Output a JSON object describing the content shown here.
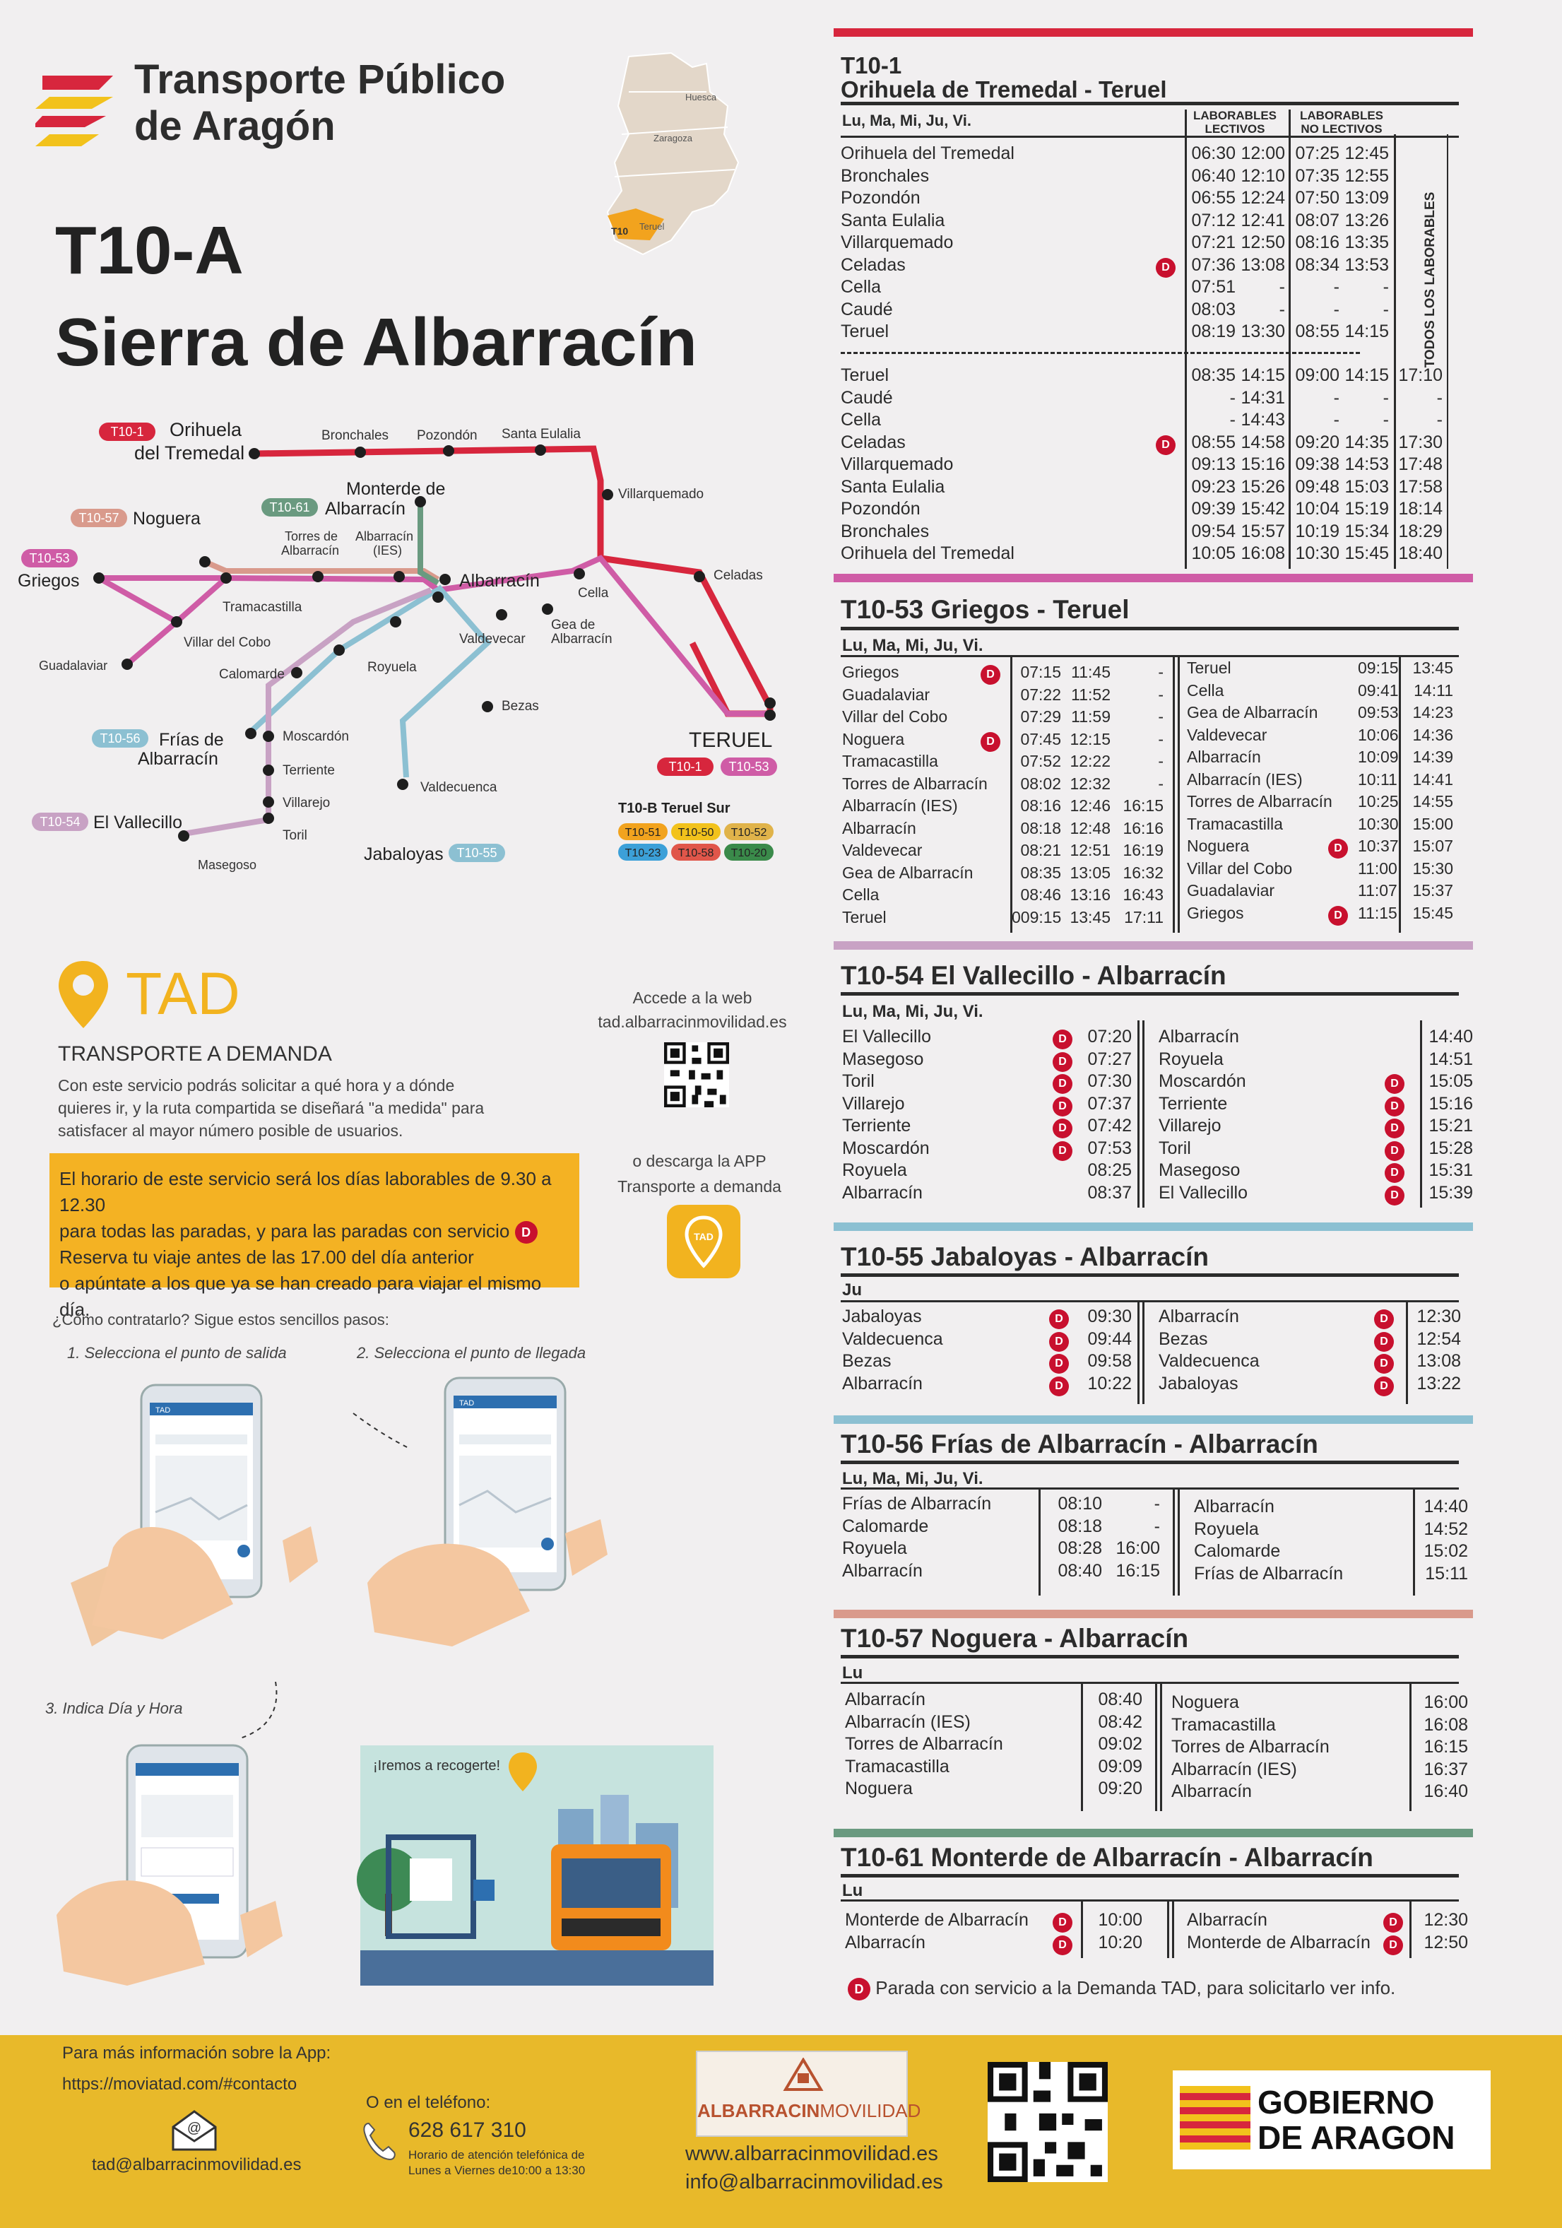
{
  "header": {
    "brand_line1": "Transporte Público",
    "brand_line2": "de Aragón",
    "map_labels": [
      "Huesca",
      "Zaragoza",
      "T10",
      "Teruel"
    ],
    "line_code": "T10-A",
    "line_name": "Sierra de Albarracín"
  },
  "route_map": {
    "stops": {
      "orihuela": "Orihuela",
      "del_tremedal": "del Tremedal",
      "bronchales": "Bronchales",
      "pozondon": "Pozondón",
      "santa_eulalia": "Santa Eulalia",
      "villarquemado": "Villarquemado",
      "monterde": "Monterde de",
      "albarracin_sub": "Albarracín",
      "noguera": "Noguera",
      "griegos": "Griegos",
      "torres": "Torres de",
      "torres_sub": "Albarracín",
      "albarracin_ies": "Albarracín",
      "ies": "(IES)",
      "albarracin": "Albarracín",
      "cella": "Cella",
      "celadas": "Celadas",
      "tramacastilla": "Tramacastilla",
      "guadalaviar": "Guadalaviar",
      "villar_cobo": "Villar del Cobo",
      "calomarde": "Calomarde",
      "royuela": "Royuela",
      "valdevecar": "Valdevecar",
      "gea": "Gea de",
      "gea_sub": "Albarracín",
      "bezas": "Bezas",
      "frias": "Frías de",
      "frias_sub": "Albarracín",
      "moscardon": "Moscardón",
      "terriente": "Terriente",
      "villarejo": "Villarejo",
      "toril": "Toril",
      "vallecillo": "El Vallecillo",
      "masegoso": "Masegoso",
      "valdecuenca": "Valdecuenca",
      "jabaloyas": "Jabaloyas",
      "teruel": "TERUEL"
    },
    "badges": {
      "t10_1": "T10-1",
      "t10_57": "T10-57",
      "t10_61": "T10-61",
      "t10_53": "T10-53",
      "t10_56": "T10-56",
      "t10_54": "T10-54",
      "t10_55": "T10-55",
      "t10_1b": "T10-1",
      "t10_53b": "T10-53"
    },
    "sur_title": "T10-B Teruel Sur",
    "sur_badges": [
      "T10-51",
      "T10-50",
      "T10-52",
      "T10-23",
      "T10-58",
      "T10-20"
    ]
  },
  "tad": {
    "logo": "TAD",
    "subtitle": "TRANSPORTE A DEMANDA",
    "desc": "Con este servicio podrás solicitar a qué hora y a dónde quieres ir, y la ruta compartida se diseñará \"a medida\" para satisfacer al mayor número posible de usuarios.",
    "web_line1": "Accede a la web",
    "web_line2": "tad.albarracinmovilidad.es",
    "app_line1": "o descarga la APP",
    "app_line2": "Transporte a demanda",
    "app_icon_text": "TAD",
    "box_l1": "El horario de este servicio será los días laborables de 9.30 a 12.30",
    "box_l2": "para todas las paradas, y para las paradas con servicio",
    "box_l3": "Reserva tu viaje antes de las 17.00 del día anterior",
    "box_l4": "o apúntate a los que ya se han creado para viajar el mismo día.",
    "badge": "D",
    "how": "¿Cómo contratarlo? Sigue estos sencillos pasos:",
    "step1": "1. Selecciona el punto de salida",
    "step2": "2. Selecciona el punto de llegada",
    "step3": "3. Indica Día y Hora",
    "pickup": "¡Iremos a recogerte!",
    "phone_header": "TAD"
  },
  "timetables": {
    "t10_1": {
      "title1": "T10-1",
      "title2": "Orihuela de Tremedal - Teruel",
      "days": "Lu, Ma, Mi, Ju, Vi.",
      "head_lect": "LABORABLES LECTIVOS",
      "head_nolect": "LABORABLES NO LECTIVOS",
      "todos": "TODOS LOS LABORABLES",
      "out_stops": [
        "Orihuela del Tremedal",
        "Bronchales",
        "Pozondón",
        "Santa Eulalia",
        "Villarquemado",
        "Celadas",
        "Cella",
        "Caudé",
        "Teruel"
      ],
      "out_d": [
        "",
        "",
        "",
        "",
        "",
        "D",
        "",
        "",
        ""
      ],
      "out_c1": [
        "06:30",
        "06:40",
        "06:55",
        "07:12",
        "07:21",
        "07:36",
        "07:51",
        "08:03",
        "08:19"
      ],
      "out_c2": [
        "12:00",
        "12:10",
        "12:24",
        "12:41",
        "12:50",
        "13:08",
        "-",
        "-",
        "13:30"
      ],
      "out_c3": [
        "07:25",
        "07:35",
        "07:50",
        "08:07",
        "08:16",
        "08:34",
        "-",
        "-",
        "08:55"
      ],
      "out_c4": [
        "12:45",
        "12:55",
        "13:09",
        "13:26",
        "13:35",
        "13:53",
        "-",
        "-",
        "14:15"
      ],
      "ret_stops": [
        "Teruel",
        "Caudé",
        "Cella",
        "Celadas",
        "Villarquemado",
        "Santa Eulalia",
        "Pozondón",
        "Bronchales",
        "Orihuela del Tremedal"
      ],
      "ret_d": [
        "",
        "",
        "",
        "D",
        "",
        "",
        "",
        "",
        ""
      ],
      "ret_c1": [
        "08:35",
        "-",
        "-",
        "08:55",
        "09:13",
        "09:23",
        "09:39",
        "09:54",
        "10:05"
      ],
      "ret_c2": [
        "14:15",
        "14:31",
        "14:43",
        "14:58",
        "15:16",
        "15:26",
        "15:42",
        "15:57",
        "16:08"
      ],
      "ret_c3": [
        "09:00",
        "-",
        "-",
        "09:20",
        "09:38",
        "09:48",
        "10:04",
        "10:19",
        "10:30"
      ],
      "ret_c4": [
        "14:15",
        "-",
        "-",
        "14:35",
        "14:53",
        "15:03",
        "15:19",
        "15:34",
        "15:45"
      ],
      "ret_c5": [
        "17:10",
        "-",
        "-",
        "17:30",
        "17:48",
        "17:58",
        "18:14",
        "18:29",
        "18:40"
      ]
    },
    "t10_53": {
      "title": "T10-53 Griegos - Teruel",
      "days": "Lu, Ma, Mi, Ju, Vi.",
      "left_stops": [
        "Griegos",
        "Guadalaviar",
        "Villar del Cobo",
        "Noguera",
        "Tramacastilla",
        "Torres de Albarracín",
        "Albarracín (IES)",
        "Albarracín",
        "Valdevecar",
        "Gea de Albarracín",
        "Cella",
        "Teruel"
      ],
      "left_d": [
        "D",
        "",
        "",
        "D",
        "",
        "",
        "",
        "",
        "",
        "",
        "",
        ""
      ],
      "left_c1": [
        "07:15",
        "07:22",
        "07:29",
        "07:45",
        "07:52",
        "08:02",
        "08:16",
        "08:18",
        "08:21",
        "08:35",
        "08:46",
        "009:15"
      ],
      "left_c2": [
        "11:45",
        "11:52",
        "11:59",
        "12:15",
        "12:22",
        "12:32",
        "12:46",
        "12:48",
        "12:51",
        "13:05",
        "13:16",
        "13:45"
      ],
      "left_c3": [
        "-",
        "-",
        "-",
        "-",
        "-",
        "-",
        "16:15",
        "16:16",
        "16:19",
        "16:32",
        "16:43",
        "17:11"
      ],
      "right_stops": [
        "Teruel",
        "Cella",
        "Gea de Albarracín",
        "Valdevecar",
        "Albarracín",
        "Albarracín (IES)",
        "Torres de Albarracín",
        "Tramacastilla",
        "Noguera",
        "Villar del Cobo",
        "Guadalaviar",
        "Griegos"
      ],
      "right_d": [
        "",
        "",
        "",
        "",
        "",
        "",
        "",
        "",
        "D",
        "",
        "",
        "D"
      ],
      "right_c1": [
        "09:15",
        "09:41",
        "09:53",
        "10:06",
        "10:09",
        "10:11",
        "10:25",
        "10:30",
        "10:37",
        "11:00",
        "11:07",
        "11:15"
      ],
      "right_c2": [
        "13:45",
        "14:11",
        "14:23",
        "14:36",
        "14:39",
        "14:41",
        "14:55",
        "15:00",
        "15:07",
        "15:30",
        "15:37",
        "15:45"
      ]
    },
    "t10_54": {
      "title": "T10-54 El Vallecillo - Albarracín",
      "days": "Lu, Ma, Mi, Ju, Vi.",
      "left_stops": [
        "El Vallecillo",
        "Masegoso",
        "Toril",
        "Villarejo",
        "Terriente",
        "Moscardón",
        "Royuela",
        "Albarracín"
      ],
      "left_d": [
        "D",
        "D",
        "D",
        "D",
        "D",
        "D",
        "",
        ""
      ],
      "left_c1": [
        "07:20",
        "07:27",
        "07:30",
        "07:37",
        "07:42",
        "07:53",
        "08:25",
        "08:37"
      ],
      "right_stops": [
        "Albarracín",
        "Royuela",
        "Moscardón",
        "Terriente",
        "Villarejo",
        "Toril",
        "Masegoso",
        "El Vallecillo"
      ],
      "right_d": [
        "",
        "",
        "D",
        "D",
        "D",
        "D",
        "D",
        "D"
      ],
      "right_c1": [
        "14:40",
        "14:51",
        "15:05",
        "15:16",
        "15:21",
        "15:28",
        "15:31",
        "15:39"
      ]
    },
    "t10_55": {
      "title": "T10-55 Jabaloyas - Albarracín",
      "days": "Ju",
      "left_stops": [
        "Jabaloyas",
        "Valdecuenca",
        "Bezas",
        "Albarracín"
      ],
      "left_d": [
        "D",
        "D",
        "D",
        "D"
      ],
      "left_c1": [
        "09:30",
        "09:44",
        "09:58",
        "10:22"
      ],
      "right_stops": [
        "Albarracín",
        "Bezas",
        "Valdecuenca",
        "Jabaloyas"
      ],
      "right_d": [
        "D",
        "D",
        "D",
        "D"
      ],
      "right_c1": [
        "12:30",
        "12:54",
        "13:08",
        "13:22"
      ]
    },
    "t10_56": {
      "title": "T10-56 Frías de Albarracín - Albarracín",
      "days": "Lu, Ma, Mi, Ju, Vi.",
      "left_stops": [
        "Frías de Albarracín",
        "Calomarde",
        "Royuela",
        "Albarracín"
      ],
      "left_c1": [
        "08:10",
        "08:18",
        "08:28",
        "08:40"
      ],
      "left_c2": [
        "-",
        "-",
        "16:00",
        "16:15"
      ],
      "right_stops": [
        "Albarracín",
        "Royuela",
        "Calomarde",
        "Frías de Albarracín"
      ],
      "right_c1": [
        "14:40",
        "14:52",
        "15:02",
        "15:11"
      ]
    },
    "t10_57": {
      "title": "T10-57 Noguera - Albarracín",
      "days": "Lu",
      "left_stops": [
        "Albarracín",
        "Albarracín (IES)",
        "Torres de Albarracín",
        "Tramacastilla",
        "Noguera"
      ],
      "left_c1": [
        "08:40",
        "08:42",
        "09:02",
        "09:09",
        "09:20"
      ],
      "right_stops": [
        "Noguera",
        "Tramacastilla",
        "Torres de Albarracín",
        "Albarracín (IES)",
        "Albarracín"
      ],
      "right_c1": [
        "16:00",
        "16:08",
        "16:15",
        "16:37",
        "16:40"
      ]
    },
    "t10_61": {
      "title": "T10-61 Monterde de Albarracín - Albarracín",
      "days": "Lu",
      "left_stops": [
        "Monterde de Albarracín",
        "Albarracín"
      ],
      "left_d": [
        "D",
        "D"
      ],
      "left_c1": [
        "10:00",
        "10:20"
      ],
      "right_stops": [
        "Albarracín",
        "Monterde de Albarracín"
      ],
      "right_d": [
        "D",
        "D"
      ],
      "right_c1": [
        "12:30",
        "12:50"
      ]
    },
    "legend": "Parada con servicio a la Demanda TAD, para solicitarlo ver info."
  },
  "footer": {
    "info_label": "Para más información sobre la App:",
    "info_url": "https://moviatad.com/#contacto",
    "phone_label": "O en el teléfono:",
    "email": "tad@albarracinmovilidad.es",
    "phone": "628 617 310",
    "hours1": "Horario de atención telefónica de",
    "hours2": "Lunes a Viernes de10:00 a 13:30",
    "albar_logo1": "ALBARRACIN",
    "albar_logo2": "MOVILIDAD",
    "web": "www.albarracinmovilidad.es",
    "web_email": "info@albarracinmovilidad.es",
    "gob1": "GOBIERNO",
    "gob2": "DE ARAGON"
  },
  "colors": {
    "red": "#d7263d",
    "pink": "#cf5ca6",
    "green": "#6a9a80",
    "teal": "#8cc0d2",
    "lilac": "#c8a2c4",
    "salmon": "#d99a8c",
    "yellow": "#f4b223",
    "footer": "#e8b92a"
  }
}
